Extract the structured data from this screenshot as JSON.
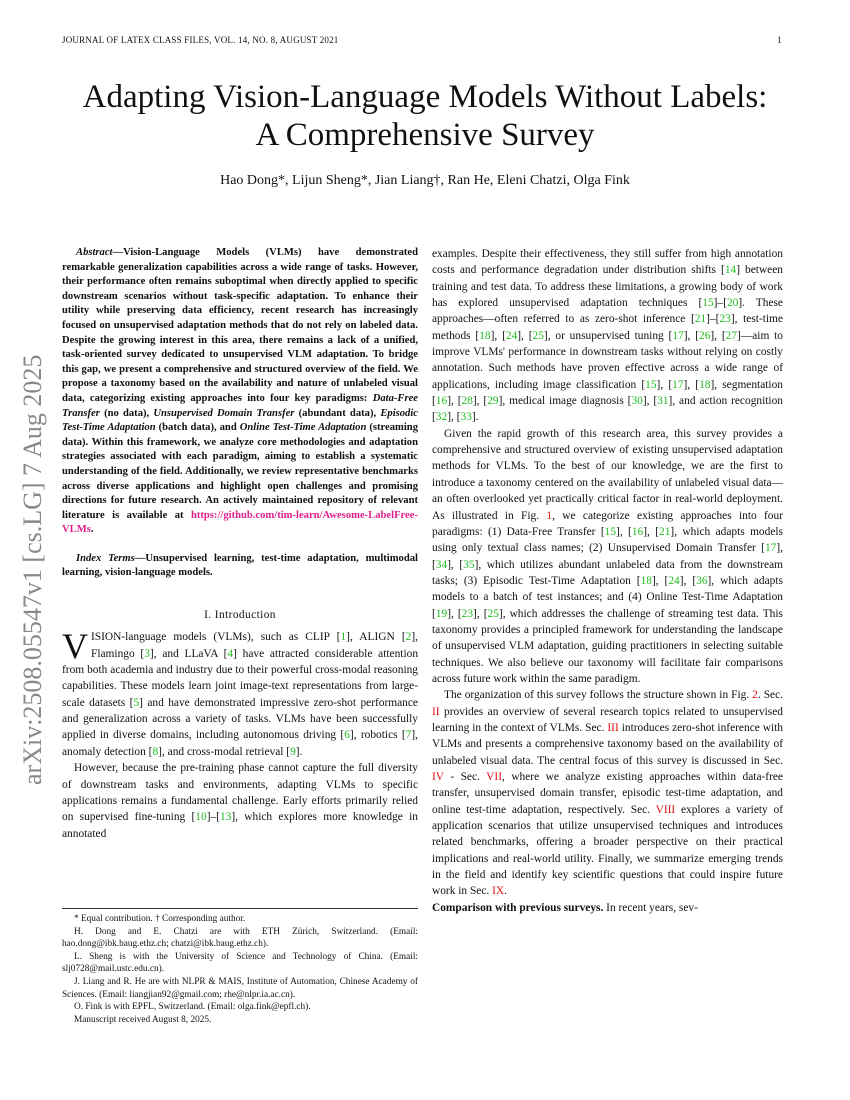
{
  "header": {
    "journal": "JOURNAL OF LATEX CLASS FILES, VOL. 14, NO. 8, AUGUST 2021",
    "page": "1"
  },
  "arxiv_stamp": "arXiv:2508.05547v1  [cs.LG]  7 Aug 2025",
  "title_line1": "Adapting Vision-Language Models Without Labels:",
  "title_line2": "A Comprehensive Survey",
  "authors": "Hao Dong*, Lijun Sheng*, Jian Liang†, Ran He, Eleni Chatzi, Olga Fink",
  "abstract": {
    "label": "Abstract",
    "text1": "—Vision-Language Models (VLMs) have demonstrated remarkable generalization capabilities across a wide range of tasks. However, their performance often remains suboptimal when directly applied to specific downstream scenarios without task-specific adaptation. To enhance their utility while preserving data efficiency, recent research has increasingly focused on unsupervised adaptation methods that do not rely on labeled data. Despite the growing interest in this area, there remains a lack of a unified, task-oriented survey dedicated to unsupervised VLM adaptation. To bridge this gap, we present a comprehensive and structured overview of the field. We propose a taxonomy based on the availability and nature of unlabeled visual data, categorizing existing approaches into four key paradigms: ",
    "p1": "Data-Free Transfer",
    "t2": " (no data), ",
    "p2": "Unsupervised Domain Transfer",
    "t3": " (abundant data), ",
    "p3": "Episodic Test-Time Adaptation",
    "t4": " (batch data), and ",
    "p4": "Online Test-Time Adaptation",
    "t5": " (streaming data). Within this framework, we analyze core methodologies and adaptation strategies associated with each paradigm, aiming to establish a systematic understanding of the field. Additionally, we review representative benchmarks across diverse applications and highlight open challenges and promising directions for future research. An actively maintained repository of relevant literature is available at ",
    "link": "https://github.com/tim-learn/Awesome-LabelFree-VLMs",
    "end": "."
  },
  "index_terms": {
    "label": "Index Terms",
    "text": "—Unsupervised learning, test-time adaptation, multimodal learning, vision-language models."
  },
  "section_title": "I. Introduction",
  "left_paragraphs": {
    "dropcap": "V",
    "p1": "ISION-language models (VLMs), such as CLIP [1], ALIGN [2], Flamingo [3], and LLaVA [4] have attracted considerable attention from both academia and industry due to their powerful cross-modal reasoning capabilities. These models learn joint image-text representations from large-scale datasets [5] and have demonstrated impressive zero-shot performance and generalization across a variety of tasks. VLMs have been successfully applied in diverse domains, including autonomous driving [6], robotics [7], anomaly detection [8], and cross-modal retrieval [9].",
    "p2": "However, because the pre-training phase cannot capture the full diversity of downstream tasks and environments, adapting VLMs to specific applications remains a fundamental challenge. Early efforts primarily relied on supervised fine-tuning [10]–[13], which explores more knowledge in annotated"
  },
  "right_paragraphs": [
    "examples. Despite their effectiveness, they still suffer from high annotation costs and performance degradation under distribution shifts [14] between training and test data. To address these limitations, a growing body of work has explored unsupervised adaptation techniques [15]–[20]. These approaches—often referred to as zero-shot inference [21]–[23], test-time methods [18], [24], [25], or unsupervised tuning [17], [26], [27]—aim to improve VLMs' performance in downstream tasks without relying on costly annotation. Such methods have proven effective across a wide range of applications, including image classification [15], [17], [18], segmentation [16], [28], [29], medical image diagnosis [30], [31], and action recognition [32], [33].",
    "Given the rapid growth of this research area, this survey provides a comprehensive and structured overview of existing unsupervised adaptation methods for VLMs. To the best of our knowledge, we are the first to introduce a taxonomy centered on the availability of unlabeled visual data—an often overlooked yet practically critical factor in real-world deployment. As illustrated in Fig. 1, we categorize existing approaches into four paradigms: (1) Data-Free Transfer [15], [16], [21], which adapts models using only textual class names; (2) Unsupervised Domain Transfer [17], [34], [35], which utilizes abundant unlabeled data from the downstream tasks; (3) Episodic Test-Time Adaptation [18], [24], [36], which adapts models to a batch of test instances; and (4) Online Test-Time Adaptation [19], [23], [25], which addresses the challenge of streaming test data. This taxonomy provides a principled framework for understanding the landscape of unsupervised VLM adaptation, guiding practitioners in selecting suitable techniques. We also believe our taxonomy will facilitate fair comparisons across future work within the same paradigm.",
    "The organization of this survey follows the structure shown in Fig. 2. Sec. II provides an overview of several research topics related to unsupervised learning in the context of VLMs. Sec. III introduces zero-shot inference with VLMs and presents a comprehensive taxonomy based on the availability of unlabeled visual data. The central focus of this survey is discussed in Sec. IV - Sec. VII, where we analyze existing approaches within data-free transfer, unsupervised domain transfer, episodic test-time adaptation, and online test-time adaptation, respectively. Sec. VIII explores a variety of application scenarios that utilize unsupervised techniques and introduces related benchmarks, offering a broader perspective on their practical implications and real-world utility. Finally, we summarize emerging trends in the field and identify key scientific questions that could inspire future work in Sec. IX."
  ],
  "last_para": {
    "bold": "Comparison with previous surveys.",
    "text": " In recent years, sev-"
  },
  "footnotes": [
    "* Equal contribution. † Corresponding author.",
    "H. Dong and E. Chatzi are with ETH Zürich, Switzerland. (Email: hao.dong@ibk.baug.ethz.ch; chatzi@ibk.baug.ethz.ch).",
    "L. Sheng is with the University of Science and Technology of China. (Email: slj0728@mail.ustc.edu.cn).",
    "J. Liang and R. He are with NLPR & MAIS, Institute of Automation, Chinese Academy of Sciences. (Email: liangjian92@gmail.com; rhe@nlpr.ia.ac.cn).",
    "O. Fink is with EPFL, Switzerland. (Email: olga.fink@epfl.ch).",
    "Manuscript received August 8, 2025."
  ],
  "colors": {
    "citation": "#1fbf1f",
    "reference": "#e01010",
    "link": "#e0208c",
    "arxiv_stamp": "#888888"
  }
}
